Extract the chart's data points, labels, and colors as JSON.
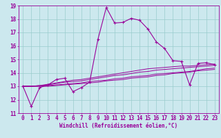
{
  "xlabel": "Windchill (Refroidissement éolien,°C)",
  "background_color": "#cce8ee",
  "line_color": "#990099",
  "grid_color": "#99cccc",
  "x_values": [
    0,
    1,
    2,
    3,
    4,
    5,
    6,
    7,
    8,
    9,
    10,
    11,
    12,
    13,
    14,
    15,
    16,
    17,
    18,
    19,
    20,
    21,
    22,
    23
  ],
  "series": [
    [
      13.0,
      11.5,
      12.9,
      13.1,
      13.5,
      13.6,
      12.6,
      12.9,
      13.3,
      16.5,
      18.85,
      17.7,
      17.75,
      18.05,
      17.9,
      17.25,
      16.3,
      15.8,
      14.9,
      14.85,
      13.1,
      14.7,
      14.75,
      14.6
    ],
    [
      13.0,
      13.0,
      13.05,
      13.15,
      13.25,
      13.35,
      13.45,
      13.5,
      13.6,
      13.7,
      13.8,
      13.9,
      14.0,
      14.1,
      14.2,
      14.3,
      14.35,
      14.4,
      14.45,
      14.5,
      14.5,
      14.55,
      14.6,
      14.65
    ],
    [
      13.0,
      13.0,
      13.05,
      13.1,
      13.2,
      13.3,
      13.35,
      13.4,
      13.5,
      13.6,
      13.7,
      13.8,
      13.85,
      13.95,
      14.05,
      14.1,
      14.2,
      14.25,
      14.3,
      14.35,
      14.4,
      14.45,
      14.5,
      14.55
    ],
    [
      13.0,
      13.0,
      13.0,
      13.05,
      13.1,
      13.15,
      13.2,
      13.25,
      13.35,
      13.4,
      13.45,
      13.55,
      13.6,
      13.7,
      13.75,
      13.8,
      13.9,
      13.95,
      14.0,
      14.05,
      14.1,
      14.2,
      14.3,
      14.35
    ],
    [
      13.0,
      13.0,
      13.0,
      13.0,
      13.05,
      13.1,
      13.15,
      13.2,
      13.25,
      13.3,
      13.4,
      13.45,
      13.5,
      13.6,
      13.65,
      13.7,
      13.8,
      13.85,
      13.95,
      14.0,
      14.05,
      14.15,
      14.2,
      14.25
    ]
  ],
  "ylim": [
    11,
    19
  ],
  "xlim": [
    -0.5,
    23.5
  ],
  "yticks": [
    11,
    12,
    13,
    14,
    15,
    16,
    17,
    18,
    19
  ],
  "xticks": [
    0,
    1,
    2,
    3,
    4,
    5,
    6,
    7,
    8,
    9,
    10,
    11,
    12,
    13,
    14,
    15,
    16,
    17,
    18,
    19,
    20,
    21,
    22,
    23
  ],
  "ylabel_fontsize": 5.5,
  "xlabel_fontsize": 5.5,
  "tick_fontsize": 5.5
}
